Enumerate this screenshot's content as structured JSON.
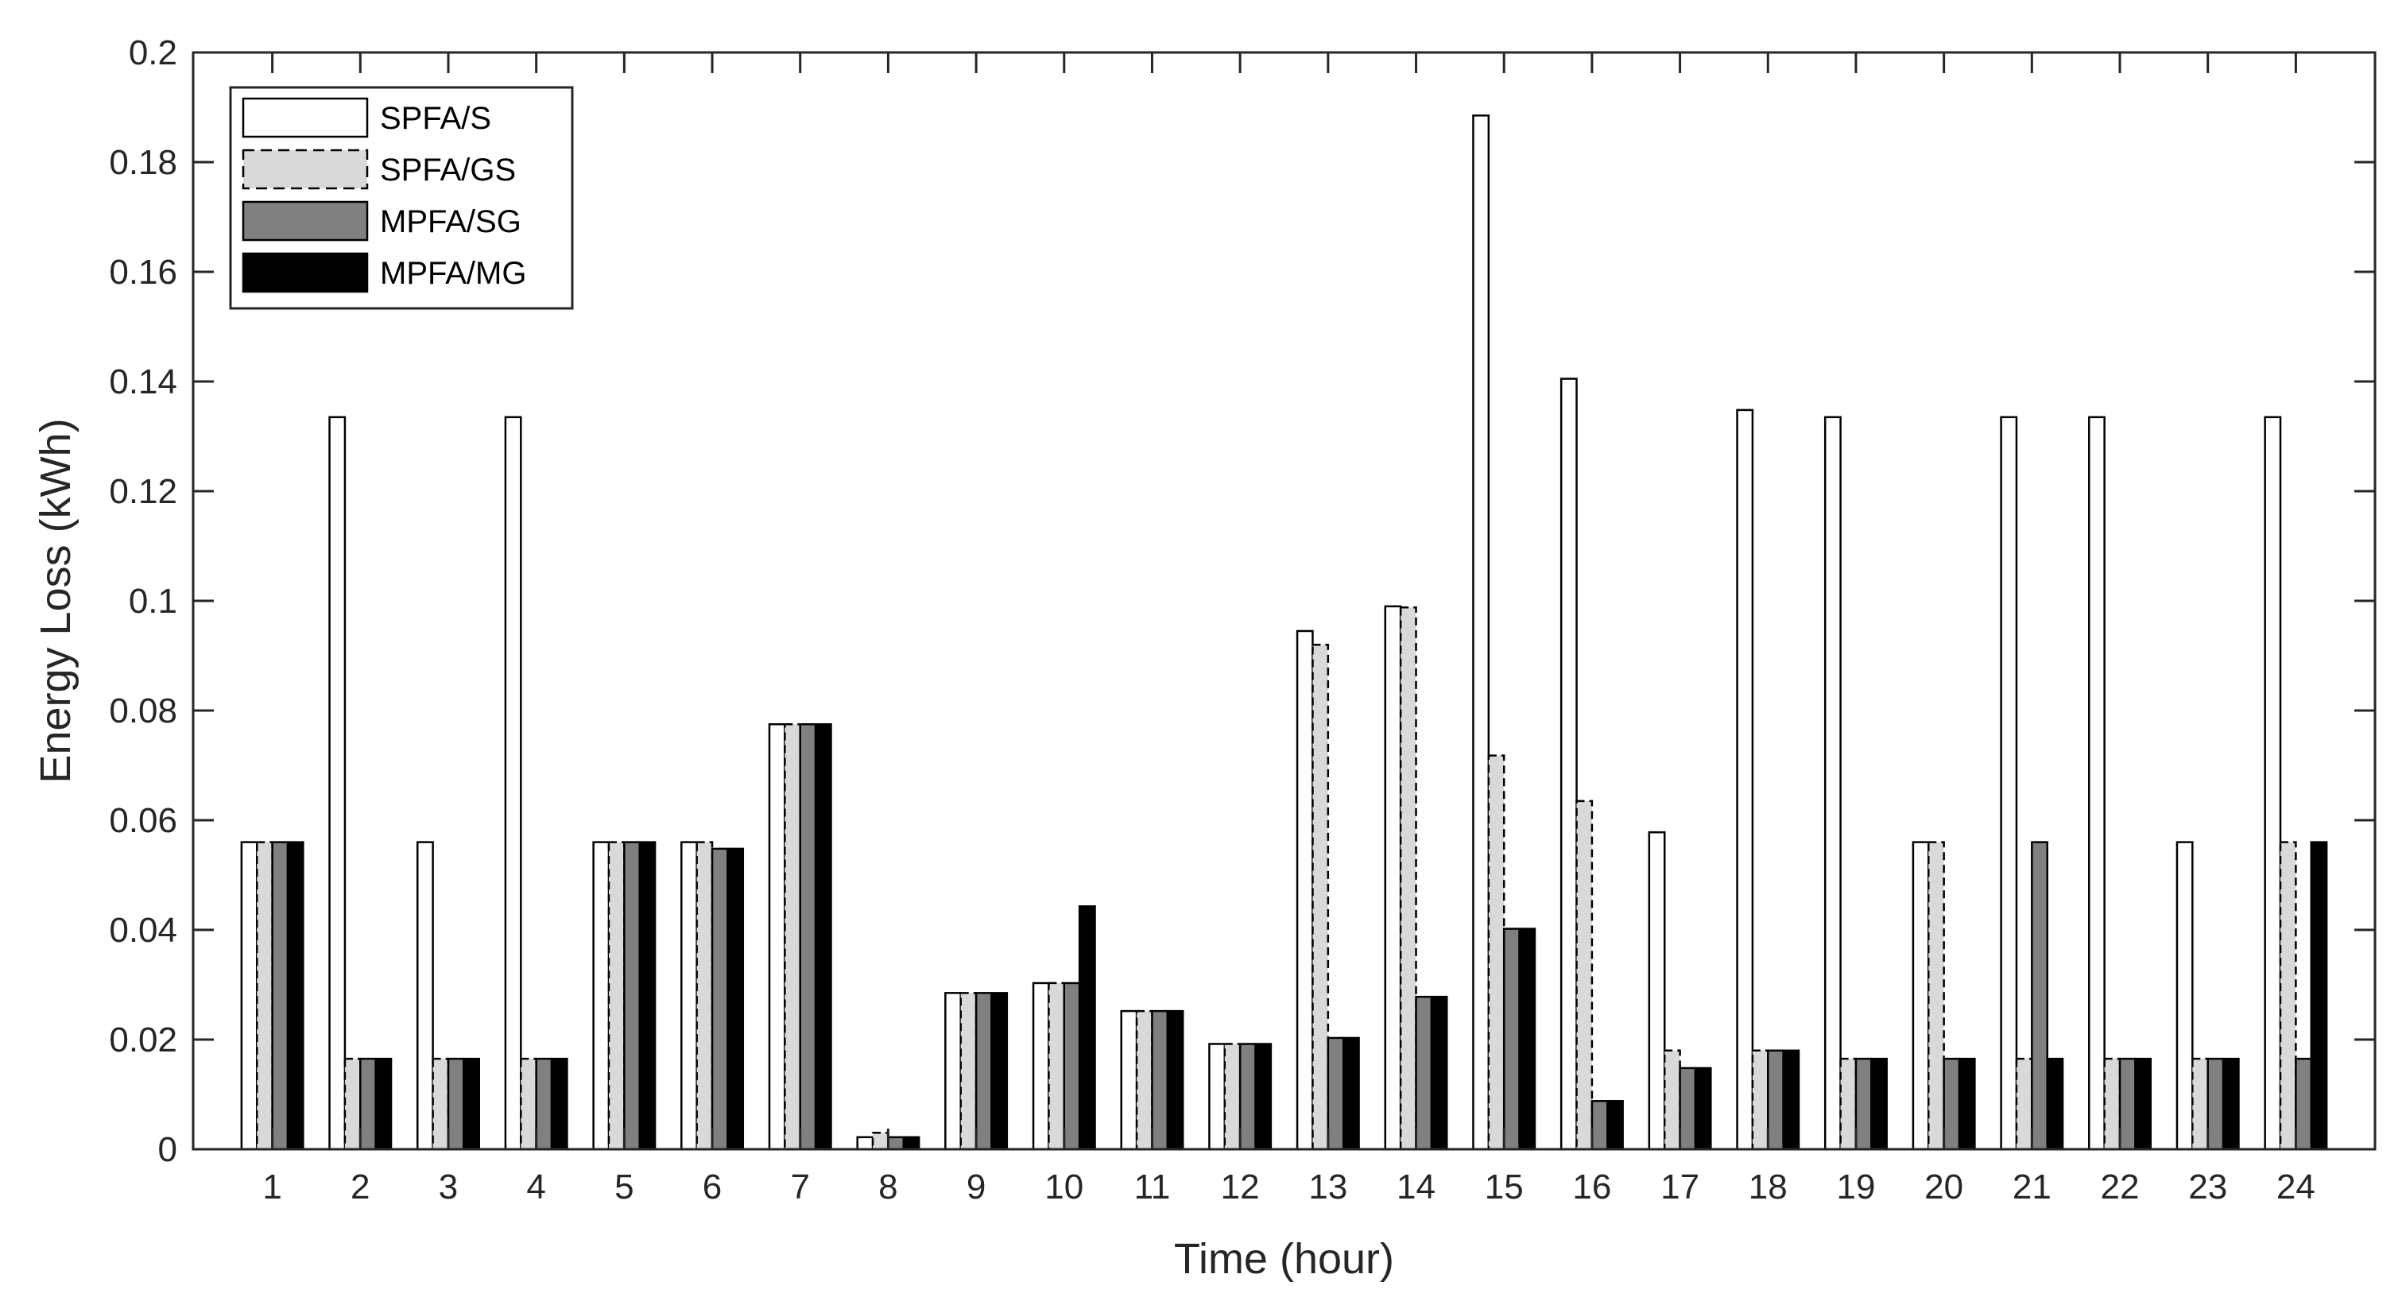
{
  "chart_data": {
    "type": "bar",
    "title": "",
    "xlabel": "Time (hour)",
    "ylabel": "Energy Loss (kWh)",
    "ylim": [
      0,
      0.2
    ],
    "yticks": [
      "0",
      "0.02",
      "0.04",
      "0.06",
      "0.08",
      "0.1",
      "0.12",
      "0.14",
      "0.16",
      "0.18",
      "0.2"
    ],
    "categories": [
      "1",
      "2",
      "3",
      "4",
      "5",
      "6",
      "7",
      "8",
      "9",
      "10",
      "11",
      "12",
      "13",
      "14",
      "15",
      "16",
      "17",
      "18",
      "19",
      "20",
      "21",
      "22",
      "23",
      "24"
    ],
    "grid": false,
    "legend_position": "top-left",
    "series": [
      {
        "name": "SPFA/S",
        "fill": "#ffffff",
        "stroke": "#000000",
        "dashed": false,
        "values": [
          0.056,
          0.1335,
          0.056,
          0.1335,
          0.056,
          0.056,
          0.0775,
          0.0022,
          0.0285,
          0.0303,
          0.0252,
          0.0192,
          0.0945,
          0.099,
          0.1885,
          0.1405,
          0.0578,
          0.1348,
          0.1335,
          0.056,
          0.1335,
          0.1335,
          0.056,
          0.1335
        ]
      },
      {
        "name": "SPFA/GS",
        "fill": "#d9d9d9",
        "stroke": "#000000",
        "dashed": true,
        "values": [
          0.056,
          0.0165,
          0.0165,
          0.0165,
          0.056,
          0.056,
          0.0775,
          0.003,
          0.0285,
          0.0303,
          0.0252,
          0.0192,
          0.092,
          0.0988,
          0.0718,
          0.0635,
          0.018,
          0.018,
          0.0165,
          0.056,
          0.0165,
          0.0165,
          0.0165,
          0.056
        ]
      },
      {
        "name": "MPFA/SG",
        "fill": "#808080",
        "stroke": "#000000",
        "dashed": false,
        "values": [
          0.056,
          0.0165,
          0.0165,
          0.0165,
          0.056,
          0.0548,
          0.0775,
          0.0022,
          0.0285,
          0.0303,
          0.0252,
          0.0192,
          0.0203,
          0.0278,
          0.0402,
          0.0088,
          0.0148,
          0.018,
          0.0165,
          0.0165,
          0.056,
          0.0165,
          0.0165,
          0.0165
        ]
      },
      {
        "name": "MPFA/MG",
        "fill": "#000000",
        "stroke": "#000000",
        "dashed": false,
        "values": [
          0.056,
          0.0165,
          0.0165,
          0.0165,
          0.056,
          0.0548,
          0.0775,
          0.0022,
          0.0285,
          0.0443,
          0.0252,
          0.0192,
          0.0203,
          0.0278,
          0.0402,
          0.0088,
          0.0148,
          0.018,
          0.0165,
          0.0165,
          0.0165,
          0.0165,
          0.0165,
          0.056
        ]
      }
    ]
  }
}
